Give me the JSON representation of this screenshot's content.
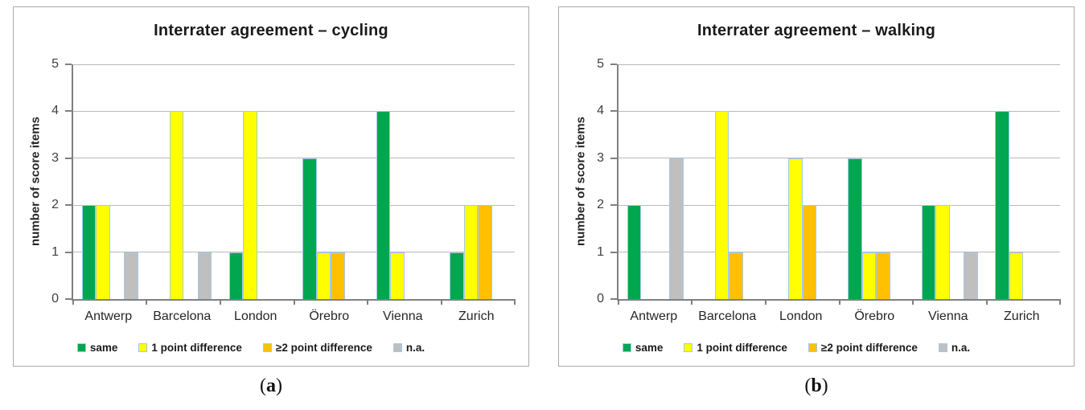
{
  "captions": [
    {
      "open": "(",
      "letter": "a",
      "close": ")"
    },
    {
      "open": "(",
      "letter": "b",
      "close": ")"
    }
  ],
  "chart_data": [
    {
      "type": "bar",
      "title": "Interrater agreement – cycling",
      "xlabel": "",
      "ylabel": "number of score items",
      "ylim": [
        0,
        5
      ],
      "yticks": [
        0,
        1,
        2,
        3,
        4,
        5
      ],
      "grid": true,
      "legend_position": "bottom",
      "categories": [
        "Antwerp",
        "Barcelona",
        "London",
        "Örebro",
        "Vienna",
        "Zurich"
      ],
      "series": [
        {
          "name": "same",
          "color": "#00A650",
          "values": [
            2,
            0,
            1,
            3,
            4,
            1
          ]
        },
        {
          "name": "1 point difference",
          "color": "#FFFF00",
          "values": [
            2,
            4,
            4,
            1,
            1,
            2
          ]
        },
        {
          "name": "≥2 point difference",
          "color": "#FFC000",
          "values": [
            0,
            0,
            0,
            1,
            0,
            2
          ]
        },
        {
          "name": "n.a.",
          "color": "#BFBFBF",
          "values": [
            1,
            1,
            0,
            0,
            0,
            0
          ]
        }
      ]
    },
    {
      "type": "bar",
      "title": "Interrater agreement – walking",
      "xlabel": "",
      "ylabel": "number of score items",
      "ylim": [
        0,
        5
      ],
      "yticks": [
        0,
        1,
        2,
        3,
        4,
        5
      ],
      "grid": true,
      "legend_position": "bottom",
      "categories": [
        "Antwerp",
        "Barcelona",
        "London",
        "Örebro",
        "Vienna",
        "Zurich"
      ],
      "series": [
        {
          "name": "same",
          "color": "#00A650",
          "values": [
            2,
            0,
            0,
            3,
            2,
            4
          ]
        },
        {
          "name": "1 point difference",
          "color": "#FFFF00",
          "values": [
            0,
            4,
            3,
            1,
            2,
            1
          ]
        },
        {
          "name": "≥2 point difference",
          "color": "#FFC000",
          "values": [
            0,
            1,
            2,
            1,
            0,
            0
          ]
        },
        {
          "name": "n.a.",
          "color": "#BFBFBF",
          "values": [
            3,
            0,
            0,
            0,
            1,
            0
          ]
        }
      ]
    }
  ]
}
